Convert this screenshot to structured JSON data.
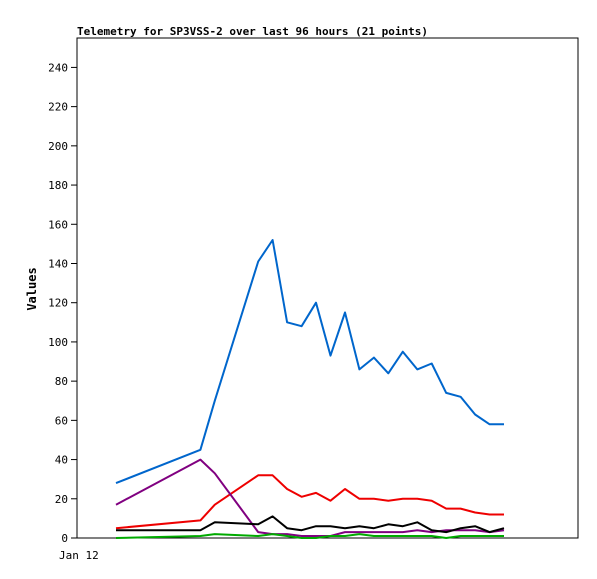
{
  "chart_data": {
    "type": "line",
    "title": "Telemetry for SP3VSS-2 over last 96 hours (21 points)",
    "xlabel": "",
    "ylabel": "Values",
    "ylim": [
      0,
      255
    ],
    "yticks": [
      0,
      20,
      40,
      60,
      80,
      100,
      120,
      140,
      160,
      180,
      200,
      220,
      240
    ],
    "xticks": [
      "Jan 12"
    ],
    "grid": false,
    "legend": "none",
    "series": [
      {
        "color": "#0066cc",
        "values": [
          28,
          45,
          70,
          141,
          152,
          110,
          108,
          120,
          93,
          115,
          86,
          92,
          84,
          95,
          86,
          89,
          74,
          72,
          63,
          58,
          58
        ],
        "x": [
          0,
          7.0,
          8.2,
          11.8,
          13.0,
          14.2,
          15.4,
          16.6,
          17.8,
          19.0,
          20.2,
          21.4,
          22.6,
          23.8,
          25.0,
          26.2,
          27.4,
          28.6,
          29.8,
          31.0,
          32.2
        ]
      },
      {
        "color": "#ee0000",
        "values": [
          5,
          9,
          17,
          32,
          32,
          25,
          21,
          23,
          19,
          25,
          20,
          20,
          19,
          20,
          20,
          19,
          15,
          15,
          13,
          12,
          12
        ],
        "x": [
          0,
          7.0,
          8.2,
          11.8,
          13.0,
          14.2,
          15.4,
          16.6,
          17.8,
          19.0,
          20.2,
          21.4,
          22.6,
          23.8,
          25.0,
          26.2,
          27.4,
          28.6,
          29.8,
          31.0,
          32.2
        ]
      },
      {
        "color": "#800080",
        "values": [
          17,
          40,
          33,
          3,
          2,
          2,
          1,
          1,
          1,
          3,
          3,
          3,
          3,
          3,
          4,
          3,
          4,
          4,
          4,
          3,
          4
        ],
        "x": [
          0,
          7.0,
          8.2,
          11.8,
          13.0,
          14.2,
          15.4,
          16.6,
          17.8,
          19.0,
          20.2,
          21.4,
          22.6,
          23.8,
          25.0,
          26.2,
          27.4,
          28.6,
          29.8,
          31.0,
          32.2
        ]
      },
      {
        "color": "#000000",
        "values": [
          4,
          4,
          8,
          7,
          11,
          5,
          4,
          6,
          6,
          5,
          6,
          5,
          7,
          6,
          8,
          4,
          3,
          5,
          6,
          3,
          5
        ],
        "x": [
          0,
          7.0,
          8.2,
          11.8,
          13.0,
          14.2,
          15.4,
          16.6,
          17.8,
          19.0,
          20.2,
          21.4,
          22.6,
          23.8,
          25.0,
          26.2,
          27.4,
          28.6,
          29.8,
          31.0,
          32.2
        ]
      },
      {
        "color": "#00aa00",
        "values": [
          0,
          1,
          2,
          1,
          2,
          1,
          0,
          0,
          1,
          1,
          2,
          1,
          1,
          1,
          1,
          1,
          0,
          1,
          1,
          1,
          1
        ],
        "x": [
          0,
          7.0,
          8.2,
          11.8,
          13.0,
          14.2,
          15.4,
          16.6,
          17.8,
          19.0,
          20.2,
          21.4,
          22.6,
          23.8,
          25.0,
          26.2,
          27.4,
          28.6,
          29.8,
          31.0,
          32.2
        ]
      }
    ]
  }
}
